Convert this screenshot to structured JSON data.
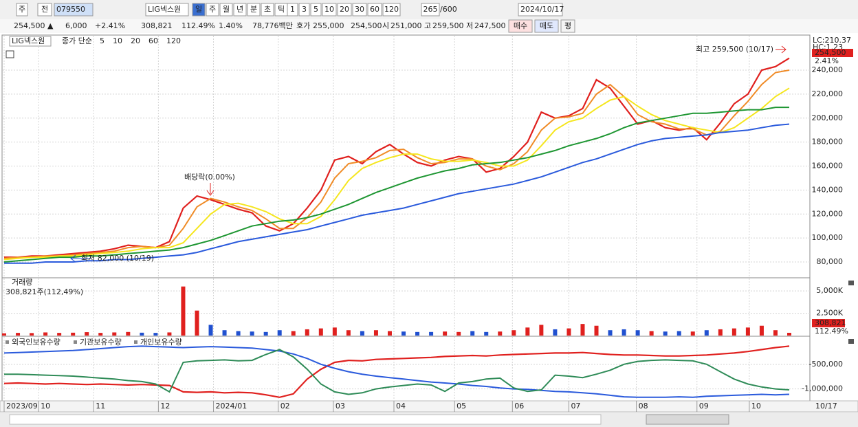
{
  "toolbar": {
    "period_toggle": "주",
    "compare": "전",
    "code": "079550",
    "name": "LIG넥스원",
    "periods": [
      "일",
      "주",
      "월",
      "년",
      "분",
      "초",
      "틱"
    ],
    "intervals": [
      "1",
      "3",
      "5",
      "10",
      "20",
      "30",
      "60",
      "120"
    ],
    "count": "265",
    "max_count": "/600",
    "date": "2024/10/17"
  },
  "info_bar": {
    "price": "254,500 ▲",
    "change": "6,000",
    "change_pct": "+2.41%",
    "volume": "308,821",
    "volume_ratio": "112.49%",
    "turnover": "1.40%",
    "amount": "78,776백만",
    "quote_label": "호가",
    "ask": "255,000",
    "bid": "254,500",
    "open_label": "시",
    "open": "251,000",
    "high_label": "고",
    "high": "259,500",
    "low_label": "저",
    "low": "247,500",
    "buy": "매수",
    "sell": "매도",
    "avg": "평"
  },
  "chart_data": [
    {
      "type": "line",
      "title": "LIG넥스원",
      "legend_label": "종가 단순",
      "xlim": [
        0,
        57
      ],
      "xticks": [
        {
          "value": 0,
          "label": "2023/09"
        },
        {
          "value": 2.5,
          "label": "10"
        },
        {
          "value": 6.5,
          "label": "11"
        },
        {
          "value": 11.2,
          "label": "12"
        },
        {
          "value": 15.2,
          "label": "2024/01"
        },
        {
          "value": 19.9,
          "label": "02"
        },
        {
          "value": 23.9,
          "label": "03"
        },
        {
          "value": 28.3,
          "label": "04"
        },
        {
          "value": 32.7,
          "label": "05"
        },
        {
          "value": 36.9,
          "label": "06"
        },
        {
          "value": 41,
          "label": "07"
        },
        {
          "value": 45.9,
          "label": "08"
        },
        {
          "value": 50.3,
          "label": "09"
        },
        {
          "value": 54.1,
          "label": "10"
        },
        {
          "value": 57,
          "label": "10/17"
        }
      ],
      "ylim": [
        67400,
        268700
      ],
      "yticks": [
        {
          "value": 80000,
          "label": "80,000"
        },
        {
          "value": 100000,
          "label": "100,000"
        },
        {
          "value": 120000,
          "label": "120,000"
        },
        {
          "value": 140000,
          "label": "140,000"
        },
        {
          "value": 160000,
          "label": "160,000"
        },
        {
          "value": 180000,
          "label": "180,000"
        },
        {
          "value": 200000,
          "label": "200,000"
        },
        {
          "value": 220000,
          "label": "220,000"
        },
        {
          "value": 240000,
          "label": "240,000"
        }
      ],
      "grid": true,
      "annotations": [
        "배당락(0.00%)",
        "최저 82,000 (10/19)",
        "최고 259,500 (10/17)"
      ],
      "side_labels": [
        "LC:210.37",
        "HC:1.23",
        "254,500",
        "2.41%"
      ],
      "series": [
        {
          "name": "5",
          "color": "#e0201e",
          "values": [
            84000,
            84000,
            85000,
            85000,
            86000,
            87000,
            88000,
            89000,
            91000,
            94000,
            93000,
            92000,
            97000,
            125000,
            135000,
            132000,
            128000,
            124000,
            121000,
            110000,
            106000,
            112000,
            125000,
            140000,
            165000,
            168000,
            162000,
            172000,
            178000,
            170000,
            163000,
            160000,
            165000,
            168000,
            166000,
            155000,
            158000,
            168000,
            180000,
            205000,
            200000,
            202000,
            208000,
            232000,
            225000,
            210000,
            195000,
            198000,
            192000,
            190000,
            192000,
            182000,
            196000,
            212000,
            220000,
            240000,
            243000,
            250000
          ]
        },
        {
          "name": "10",
          "color": "#f08c28",
          "values": [
            83000,
            84000,
            84000,
            85000,
            85000,
            86000,
            87000,
            88000,
            89000,
            92000,
            93000,
            92000,
            94000,
            108000,
            126000,
            133000,
            130000,
            126000,
            123000,
            116000,
            108000,
            108000,
            117000,
            130000,
            150000,
            162000,
            164000,
            167000,
            173000,
            174000,
            167000,
            162000,
            163000,
            166000,
            166000,
            160000,
            157000,
            162000,
            172000,
            190000,
            200000,
            201000,
            204000,
            220000,
            228000,
            218000,
            203000,
            197000,
            195000,
            191000,
            191000,
            186000,
            189000,
            202000,
            214000,
            228000,
            238000,
            240000
          ]
        },
        {
          "name": "20",
          "color": "#f5e61e",
          "values": [
            82000,
            83000,
            84000,
            84000,
            85000,
            85000,
            86000,
            87000,
            88000,
            89000,
            91000,
            92000,
            92000,
            96000,
            108000,
            120000,
            128000,
            129000,
            126000,
            122000,
            116000,
            112000,
            112000,
            118000,
            132000,
            148000,
            158000,
            163000,
            167000,
            170000,
            170000,
            166000,
            164000,
            164000,
            165000,
            163000,
            160000,
            160000,
            165000,
            177000,
            190000,
            197000,
            200000,
            208000,
            215000,
            218000,
            210000,
            203000,
            198000,
            195000,
            192000,
            190000,
            188000,
            192000,
            200000,
            208000,
            218000,
            225000
          ]
        },
        {
          "name": "60",
          "color": "#1e9632",
          "values": [
            80000,
            81000,
            82000,
            83000,
            84000,
            84000,
            85000,
            85000,
            86000,
            87000,
            88000,
            89000,
            90000,
            92000,
            95000,
            98000,
            102000,
            106000,
            110000,
            112000,
            114000,
            115000,
            117000,
            120000,
            124000,
            128000,
            133000,
            138000,
            142000,
            146000,
            150000,
            153000,
            156000,
            158000,
            161000,
            162000,
            163000,
            165000,
            167000,
            170000,
            173000,
            177000,
            180000,
            183000,
            187000,
            192000,
            196000,
            198000,
            200000,
            202000,
            204000,
            204000,
            205000,
            206000,
            207000,
            207000,
            209000,
            209000
          ]
        },
        {
          "name": "120",
          "color": "#2a5adc",
          "values": [
            79000,
            79000,
            79000,
            80000,
            80000,
            80000,
            81000,
            81000,
            82000,
            82000,
            83000,
            84000,
            85000,
            86000,
            88000,
            91000,
            94000,
            97000,
            99000,
            101000,
            103000,
            105000,
            107000,
            110000,
            113000,
            116000,
            119000,
            121000,
            123000,
            125000,
            128000,
            131000,
            134000,
            137000,
            139000,
            141000,
            143000,
            145000,
            148000,
            151000,
            155000,
            159000,
            163000,
            166000,
            170000,
            174000,
            178000,
            181000,
            183000,
            184000,
            185000,
            186000,
            188000,
            189000,
            190000,
            192000,
            194000,
            195000
          ]
        }
      ]
    },
    {
      "type": "bar",
      "title": "거래량",
      "subtitle": "308,821주(112,49%)",
      "color": "#e0201e",
      "down_color": "#2050d0",
      "ylim": [
        0,
        6400000
      ],
      "yticks": [
        {
          "value": 2500000,
          "label": "2,500K"
        },
        {
          "value": 5000000,
          "label": "5,000K"
        }
      ],
      "side_labels": [
        "308,821",
        "112.49%"
      ],
      "values": [
        250000,
        300000,
        280000,
        350000,
        300000,
        320000,
        380000,
        300000,
        350000,
        400000,
        320000,
        300000,
        350000,
        5500000,
        2800000,
        1200000,
        600000,
        500000,
        450000,
        400000,
        600000,
        500000,
        700000,
        800000,
        900000,
        600000,
        500000,
        600000,
        500000,
        450000,
        400000,
        400000,
        450000,
        400000,
        500000,
        400000,
        450000,
        600000,
        900000,
        1200000,
        700000,
        800000,
        1300000,
        1100000,
        600000,
        700000,
        600000,
        500000,
        450000,
        500000,
        450000,
        600000,
        700000,
        800000,
        900000,
        1100000,
        600000,
        308821
      ]
    },
    {
      "type": "line",
      "ylim": [
        -1243000,
        57000
      ],
      "yticks": [
        {
          "value": -500000,
          "label": "-500,000"
        },
        {
          "value": -1000000,
          "label": "-1,000,000"
        }
      ],
      "series": [
        {
          "name": "외국인보유수량",
          "color": "#e0201e",
          "values": [
            -890000,
            -880000,
            -890000,
            -900000,
            -890000,
            -900000,
            -910000,
            -900000,
            -910000,
            -920000,
            -910000,
            -920000,
            -930000,
            -1060000,
            -1070000,
            -1060000,
            -1080000,
            -1070000,
            -1080000,
            -1120000,
            -1170000,
            -1100000,
            -800000,
            -600000,
            -460000,
            -420000,
            -430000,
            -400000,
            -390000,
            -380000,
            -370000,
            -360000,
            -340000,
            -330000,
            -320000,
            -330000,
            -310000,
            -300000,
            -290000,
            -280000,
            -270000,
            -270000,
            -260000,
            -280000,
            -300000,
            -310000,
            -310000,
            -320000,
            -330000,
            -330000,
            -320000,
            -310000,
            -290000,
            -270000,
            -240000,
            -200000,
            -160000,
            -130000
          ]
        },
        {
          "name": "기관보유수량",
          "color": "#2a5adc",
          "values": [
            -270000,
            -260000,
            -250000,
            -240000,
            -230000,
            -220000,
            -200000,
            -180000,
            -160000,
            -140000,
            -130000,
            -140000,
            -150000,
            -160000,
            -150000,
            -140000,
            -150000,
            -160000,
            -170000,
            -200000,
            -230000,
            -290000,
            -380000,
            -500000,
            -580000,
            -650000,
            -700000,
            -740000,
            -770000,
            -800000,
            -830000,
            -860000,
            -880000,
            -900000,
            -930000,
            -950000,
            -980000,
            -1000000,
            -1010000,
            -1030000,
            -1050000,
            -1060000,
            -1080000,
            -1100000,
            -1130000,
            -1160000,
            -1170000,
            -1170000,
            -1170000,
            -1160000,
            -1170000,
            -1150000,
            -1140000,
            -1130000,
            -1120000,
            -1110000,
            -1120000,
            -1110000
          ]
        },
        {
          "name": "개인보유수량",
          "color": "#2e8b57",
          "values": [
            -700000,
            -700000,
            -710000,
            -720000,
            -730000,
            -740000,
            -760000,
            -780000,
            -800000,
            -830000,
            -850000,
            -900000,
            -1060000,
            -460000,
            -430000,
            -420000,
            -410000,
            -430000,
            -420000,
            -300000,
            -200000,
            -350000,
            -600000,
            -900000,
            -1060000,
            -1110000,
            -1080000,
            -1000000,
            -960000,
            -930000,
            -900000,
            -920000,
            -1050000,
            -880000,
            -850000,
            -800000,
            -780000,
            -980000,
            -1050000,
            -1020000,
            -720000,
            -740000,
            -770000,
            -700000,
            -620000,
            -500000,
            -440000,
            -420000,
            -410000,
            -420000,
            -430000,
            -500000,
            -650000,
            -800000,
            -900000,
            -960000,
            -1000000,
            -1020000
          ]
        }
      ]
    }
  ]
}
